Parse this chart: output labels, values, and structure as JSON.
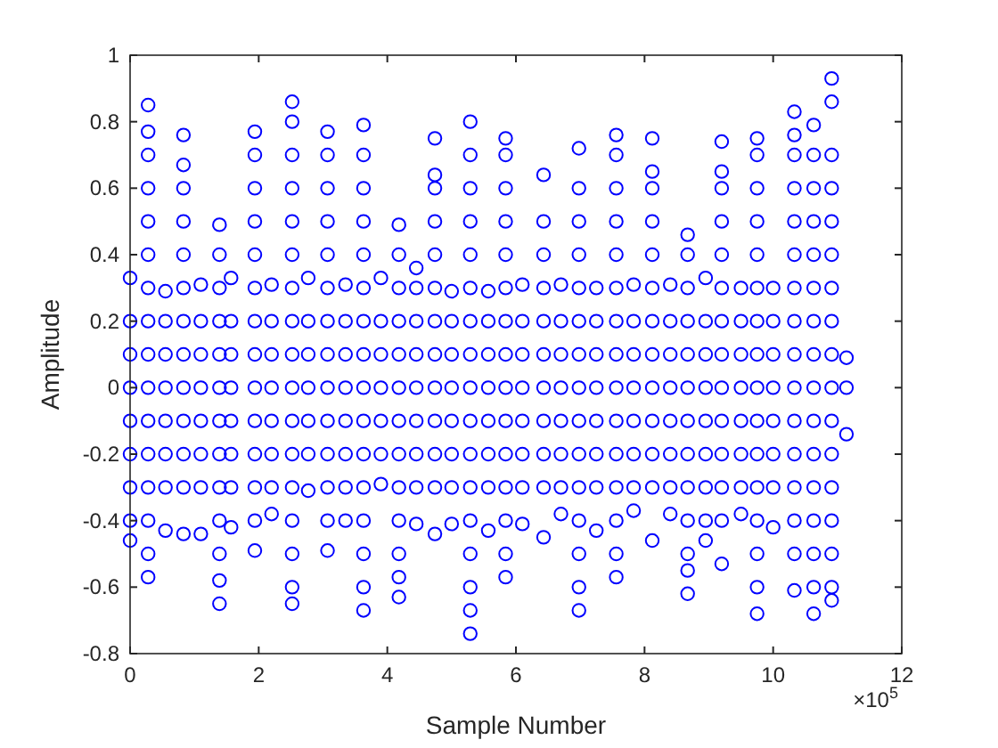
{
  "chart_data": {
    "type": "scatter",
    "xlabel": "Sample Number",
    "ylabel": "Amplitude",
    "marker": "circle",
    "xlim": [
      0,
      12
    ],
    "ylim": [
      -0.8,
      1
    ],
    "xticks": [
      0,
      2,
      4,
      6,
      8,
      10,
      12
    ],
    "yticks": [
      -0.8,
      -0.6,
      -0.4,
      -0.2,
      0,
      0.2,
      0.4,
      0.6,
      0.8,
      1
    ],
    "annotations": [
      "×10$^{5}$"
    ],
    "series": [
      {
        "color": "#0000ff",
        "x": [
          0,
          0,
          0,
          0,
          0,
          0,
          0,
          0,
          0
        ],
        "values": [
          0.33,
          0.2,
          0.1,
          0,
          -0.1,
          -0.2,
          -0.3,
          -0.4,
          -0.46
        ]
      },
      {
        "color": "#0000ff",
        "x": [
          0.28,
          0.28,
          0.28,
          0.28,
          0.28,
          0.28,
          0.28,
          0.28,
          0.28,
          0.28,
          0.28,
          0.28,
          0.28,
          0.28,
          0.28,
          0.28
        ],
        "values": [
          0.85,
          0.77,
          0.7,
          0.6,
          0.5,
          0.4,
          0.3,
          0.2,
          0.1,
          0,
          -0.1,
          -0.2,
          -0.3,
          -0.4,
          -0.5,
          -0.57
        ]
      },
      {
        "color": "#0000ff",
        "x": [
          0.55,
          0.55,
          0.55,
          0.55,
          0.55,
          0.55,
          0.55,
          0.55
        ],
        "values": [
          0.29,
          0.2,
          0.1,
          0,
          -0.1,
          -0.2,
          -0.3,
          -0.43
        ]
      },
      {
        "color": "#0000ff",
        "x": [
          0.83,
          0.83,
          0.83,
          0.83,
          0.83,
          0.83,
          0.83,
          0.83,
          0.83,
          0.83,
          0.83,
          0.83,
          0.83
        ],
        "values": [
          0.76,
          0.67,
          0.6,
          0.5,
          0.4,
          0.3,
          0.2,
          0.1,
          0,
          -0.1,
          -0.2,
          -0.3,
          -0.44
        ]
      },
      {
        "color": "#0000ff",
        "x": [
          1.1,
          1.1,
          1.1,
          1.1,
          1.1,
          1.1,
          1.1,
          1.1
        ],
        "values": [
          0.31,
          0.2,
          0.1,
          0,
          -0.1,
          -0.2,
          -0.3,
          -0.44
        ]
      },
      {
        "color": "#0000ff",
        "x": [
          1.39,
          1.39,
          1.39,
          1.39,
          1.39,
          1.39,
          1.39,
          1.39,
          1.39,
          1.39,
          1.39,
          1.39,
          1.39
        ],
        "values": [
          0.49,
          0.4,
          0.3,
          0.2,
          0.1,
          0,
          -0.1,
          -0.2,
          -0.3,
          -0.4,
          -0.5,
          -0.58,
          -0.65
        ]
      },
      {
        "color": "#0000ff",
        "x": [
          1.57,
          1.57,
          1.57,
          1.57,
          1.57,
          1.57,
          1.57,
          1.57
        ],
        "values": [
          0.33,
          0.2,
          0.1,
          0,
          -0.1,
          -0.2,
          -0.3,
          -0.42
        ]
      },
      {
        "color": "#0000ff",
        "x": [
          1.94,
          1.94,
          1.94,
          1.94,
          1.94,
          1.94,
          1.94,
          1.94,
          1.94,
          1.94,
          1.94,
          1.94,
          1.94,
          1.94
        ],
        "values": [
          0.77,
          0.7,
          0.6,
          0.5,
          0.4,
          0.3,
          0.2,
          0.1,
          0,
          -0.1,
          -0.2,
          -0.3,
          -0.4,
          -0.49
        ]
      },
      {
        "color": "#0000ff",
        "x": [
          2.2,
          2.2,
          2.2,
          2.2,
          2.2,
          2.2,
          2.2,
          2.2
        ],
        "values": [
          0.31,
          0.2,
          0.1,
          0,
          -0.1,
          -0.2,
          -0.3,
          -0.38
        ]
      },
      {
        "color": "#0000ff",
        "x": [
          2.52,
          2.52,
          2.52,
          2.52,
          2.52,
          2.52,
          2.52,
          2.52,
          2.52,
          2.52,
          2.52,
          2.52,
          2.52,
          2.52,
          2.52,
          2.52,
          2.52
        ],
        "values": [
          0.86,
          0.8,
          0.7,
          0.6,
          0.5,
          0.4,
          0.3,
          0.2,
          0.1,
          0,
          -0.1,
          -0.2,
          -0.3,
          -0.4,
          -0.5,
          -0.6,
          -0.65
        ]
      },
      {
        "color": "#0000ff",
        "x": [
          2.77,
          2.77,
          2.77,
          2.77,
          2.77,
          2.77,
          2.77
        ],
        "values": [
          0.33,
          0.2,
          0.1,
          0,
          -0.1,
          -0.2,
          -0.31
        ]
      },
      {
        "color": "#0000ff",
        "x": [
          3.07,
          3.07,
          3.07,
          3.07,
          3.07,
          3.07,
          3.07,
          3.07,
          3.07,
          3.07,
          3.07,
          3.07,
          3.07,
          3.07
        ],
        "values": [
          0.77,
          0.7,
          0.6,
          0.5,
          0.4,
          0.3,
          0.2,
          0.1,
          0,
          -0.1,
          -0.2,
          -0.3,
          -0.4,
          -0.49
        ]
      },
      {
        "color": "#0000ff",
        "x": [
          3.35,
          3.35,
          3.35,
          3.35,
          3.35,
          3.35,
          3.35,
          3.35
        ],
        "values": [
          0.31,
          0.2,
          0.1,
          0,
          -0.1,
          -0.2,
          -0.3,
          -0.4
        ]
      },
      {
        "color": "#0000ff",
        "x": [
          3.63,
          3.63,
          3.63,
          3.63,
          3.63,
          3.63,
          3.63,
          3.63,
          3.63,
          3.63,
          3.63,
          3.63,
          3.63,
          3.63,
          3.63,
          3.63
        ],
        "values": [
          0.79,
          0.7,
          0.6,
          0.5,
          0.4,
          0.3,
          0.2,
          0.1,
          0,
          -0.1,
          -0.2,
          -0.3,
          -0.4,
          -0.5,
          -0.6,
          -0.67
        ]
      },
      {
        "color": "#0000ff",
        "x": [
          3.9,
          3.9,
          3.9,
          3.9,
          3.9,
          3.9,
          3.9
        ],
        "values": [
          0.33,
          0.2,
          0.1,
          0,
          -0.1,
          -0.2,
          -0.29
        ]
      },
      {
        "color": "#0000ff",
        "x": [
          4.18,
          4.18,
          4.18,
          4.18,
          4.18,
          4.18,
          4.18,
          4.18,
          4.18,
          4.18,
          4.18,
          4.18,
          4.18
        ],
        "values": [
          0.49,
          0.4,
          0.3,
          0.2,
          0.1,
          0,
          -0.1,
          -0.2,
          -0.3,
          -0.4,
          -0.5,
          -0.57,
          -0.63
        ]
      },
      {
        "color": "#0000ff",
        "x": [
          4.45,
          4.45,
          4.45,
          4.45,
          4.45,
          4.45,
          4.45,
          4.45,
          4.45
        ],
        "values": [
          0.36,
          0.3,
          0.2,
          0.1,
          0,
          -0.1,
          -0.2,
          -0.3,
          -0.41
        ]
      },
      {
        "color": "#0000ff",
        "x": [
          4.74,
          4.74,
          4.74,
          4.74,
          4.74,
          4.74,
          4.74,
          4.74,
          4.74,
          4.74,
          4.74,
          4.74,
          4.74
        ],
        "values": [
          0.75,
          0.64,
          0.6,
          0.5,
          0.4,
          0.3,
          0.2,
          0.1,
          0,
          -0.1,
          -0.2,
          -0.3,
          -0.44
        ]
      },
      {
        "color": "#0000ff",
        "x": [
          5,
          5,
          5,
          5,
          5,
          5,
          5,
          5
        ],
        "values": [
          0.29,
          0.2,
          0.1,
          0,
          -0.1,
          -0.2,
          -0.3,
          -0.41
        ]
      },
      {
        "color": "#0000ff",
        "x": [
          5.29,
          5.29,
          5.29,
          5.29,
          5.29,
          5.29,
          5.29,
          5.29,
          5.29,
          5.29,
          5.29,
          5.29,
          5.29,
          5.29,
          5.29,
          5.29,
          5.29
        ],
        "values": [
          0.8,
          0.7,
          0.6,
          0.5,
          0.4,
          0.3,
          0.2,
          0.1,
          0,
          -0.1,
          -0.2,
          -0.3,
          -0.4,
          -0.5,
          -0.6,
          -0.67,
          -0.74
        ]
      },
      {
        "color": "#0000ff",
        "x": [
          5.57,
          5.57,
          5.57,
          5.57,
          5.57,
          5.57,
          5.57,
          5.57
        ],
        "values": [
          0.29,
          0.2,
          0.1,
          0,
          -0.1,
          -0.2,
          -0.3,
          -0.43
        ]
      },
      {
        "color": "#0000ff",
        "x": [
          5.84,
          5.84,
          5.84,
          5.84,
          5.84,
          5.84,
          5.84,
          5.84,
          5.84,
          5.84,
          5.84,
          5.84,
          5.84,
          5.84,
          5.84
        ],
        "values": [
          0.75,
          0.7,
          0.6,
          0.5,
          0.4,
          0.3,
          0.2,
          0.1,
          0,
          -0.1,
          -0.2,
          -0.3,
          -0.4,
          -0.5,
          -0.57
        ]
      },
      {
        "color": "#0000ff",
        "x": [
          6.1,
          6.1,
          6.1,
          6.1,
          6.1,
          6.1,
          6.1,
          6.1
        ],
        "values": [
          0.31,
          0.2,
          0.1,
          0,
          -0.1,
          -0.2,
          -0.3,
          -0.41
        ]
      },
      {
        "color": "#0000ff",
        "x": [
          6.43,
          6.43,
          6.43,
          6.43,
          6.43,
          6.43,
          6.43,
          6.43,
          6.43,
          6.43,
          6.43
        ],
        "values": [
          0.64,
          0.5,
          0.4,
          0.3,
          0.2,
          0.1,
          0,
          -0.1,
          -0.2,
          -0.3,
          -0.45
        ]
      },
      {
        "color": "#0000ff",
        "x": [
          6.7,
          6.7,
          6.7,
          6.7,
          6.7,
          6.7,
          6.7,
          6.7
        ],
        "values": [
          0.31,
          0.2,
          0.1,
          0,
          -0.1,
          -0.2,
          -0.3,
          -0.38
        ]
      },
      {
        "color": "#0000ff",
        "x": [
          6.98,
          6.98,
          6.98,
          6.98,
          6.98,
          6.98,
          6.98,
          6.98,
          6.98,
          6.98,
          6.98,
          6.98,
          6.98,
          6.98,
          6.98
        ],
        "values": [
          0.72,
          0.6,
          0.5,
          0.4,
          0.3,
          0.2,
          0.1,
          0,
          -0.1,
          -0.2,
          -0.3,
          -0.4,
          -0.5,
          -0.6,
          -0.67
        ]
      },
      {
        "color": "#0000ff",
        "x": [
          7.25,
          7.25,
          7.25,
          7.25,
          7.25,
          7.25,
          7.25,
          7.25
        ],
        "values": [
          0.3,
          0.2,
          0.1,
          0,
          -0.1,
          -0.2,
          -0.3,
          -0.43
        ]
      },
      {
        "color": "#0000ff",
        "x": [
          7.56,
          7.56,
          7.56,
          7.56,
          7.56,
          7.56,
          7.56,
          7.56,
          7.56,
          7.56,
          7.56,
          7.56,
          7.56,
          7.56,
          7.56
        ],
        "values": [
          0.76,
          0.7,
          0.6,
          0.5,
          0.4,
          0.3,
          0.2,
          0.1,
          0,
          -0.1,
          -0.2,
          -0.3,
          -0.4,
          -0.5,
          -0.57
        ]
      },
      {
        "color": "#0000ff",
        "x": [
          7.83,
          7.83,
          7.83,
          7.83,
          7.83,
          7.83,
          7.83,
          7.83
        ],
        "values": [
          0.31,
          0.2,
          0.1,
          0,
          -0.1,
          -0.2,
          -0.3,
          -0.37
        ]
      },
      {
        "color": "#0000ff",
        "x": [
          8.12,
          8.12,
          8.12,
          8.12,
          8.12,
          8.12,
          8.12,
          8.12,
          8.12,
          8.12,
          8.12,
          8.12,
          8.12
        ],
        "values": [
          0.75,
          0.65,
          0.6,
          0.5,
          0.4,
          0.3,
          0.2,
          0.1,
          0,
          -0.1,
          -0.2,
          -0.3,
          -0.46
        ]
      },
      {
        "color": "#0000ff",
        "x": [
          8.4,
          8.4,
          8.4,
          8.4,
          8.4,
          8.4,
          8.4,
          8.4
        ],
        "values": [
          0.31,
          0.2,
          0.1,
          0,
          -0.1,
          -0.2,
          -0.3,
          -0.38
        ]
      },
      {
        "color": "#0000ff",
        "x": [
          8.67,
          8.67,
          8.67,
          8.67,
          8.67,
          8.67,
          8.67,
          8.67,
          8.67,
          8.67,
          8.67,
          8.67,
          8.67
        ],
        "values": [
          0.46,
          0.4,
          0.3,
          0.2,
          0.1,
          0,
          -0.1,
          -0.2,
          -0.3,
          -0.4,
          -0.5,
          -0.55,
          -0.62
        ]
      },
      {
        "color": "#0000ff",
        "x": [
          8.95,
          8.95,
          8.95,
          8.95,
          8.95,
          8.95,
          8.95,
          8.95,
          8.95
        ],
        "values": [
          0.33,
          0.2,
          0.1,
          0,
          -0.1,
          -0.2,
          -0.3,
          -0.4,
          -0.46
        ]
      },
      {
        "color": "#0000ff",
        "x": [
          9.2,
          9.2,
          9.2,
          9.2,
          9.2,
          9.2,
          9.2,
          9.2,
          9.2,
          9.2,
          9.2,
          9.2,
          9.2,
          9.2
        ],
        "values": [
          0.74,
          0.65,
          0.6,
          0.5,
          0.4,
          0.3,
          0.2,
          0.1,
          0,
          -0.1,
          -0.2,
          -0.3,
          -0.4,
          -0.53
        ]
      },
      {
        "color": "#0000ff",
        "x": [
          9.5,
          9.5,
          9.5,
          9.5,
          9.5,
          9.5,
          9.5,
          9.5
        ],
        "values": [
          0.3,
          0.2,
          0.1,
          0,
          -0.1,
          -0.2,
          -0.3,
          -0.38
        ]
      },
      {
        "color": "#0000ff",
        "x": [
          9.75,
          9.75,
          9.75,
          9.75,
          9.75,
          9.75,
          9.75,
          9.75,
          9.75,
          9.75,
          9.75,
          9.75,
          9.75,
          9.75,
          9.75,
          9.75
        ],
        "values": [
          0.75,
          0.7,
          0.6,
          0.5,
          0.4,
          0.3,
          0.2,
          0.1,
          0,
          -0.1,
          -0.2,
          -0.3,
          -0.4,
          -0.5,
          -0.6,
          -0.68
        ]
      },
      {
        "color": "#0000ff",
        "x": [
          10,
          10,
          10,
          10,
          10,
          10,
          10,
          10
        ],
        "values": [
          0.3,
          0.2,
          0.1,
          0,
          -0.1,
          -0.2,
          -0.3,
          -0.42
        ]
      },
      {
        "color": "#0000ff",
        "x": [
          10.33,
          10.33,
          10.33,
          10.33,
          10.33,
          10.33,
          10.33,
          10.33,
          10.33,
          10.33,
          10.33,
          10.33,
          10.33,
          10.33,
          10.33,
          10.33
        ],
        "values": [
          0.83,
          0.76,
          0.7,
          0.6,
          0.5,
          0.4,
          0.3,
          0.2,
          0.1,
          0,
          -0.1,
          -0.2,
          -0.3,
          -0.4,
          -0.5,
          -0.61
        ]
      },
      {
        "color": "#0000ff",
        "x": [
          10.63,
          10.63,
          10.63,
          10.63,
          10.63,
          10.63,
          10.63,
          10.63,
          10.63,
          10.63,
          10.63,
          10.63,
          10.63,
          10.63,
          10.63,
          10.63
        ],
        "values": [
          0.79,
          0.7,
          0.6,
          0.5,
          0.4,
          0.3,
          0.2,
          0.1,
          0,
          -0.1,
          -0.2,
          -0.3,
          -0.4,
          -0.5,
          -0.6,
          -0.68
        ]
      },
      {
        "color": "#0000ff",
        "x": [
          10.91,
          10.91,
          10.91,
          10.91,
          10.91,
          10.91,
          10.91,
          10.91,
          10.91,
          10.91,
          10.91,
          10.91,
          10.91,
          10.91,
          10.91,
          10.91,
          10.91
        ],
        "values": [
          0.93,
          0.86,
          0.7,
          0.6,
          0.5,
          0.4,
          0.3,
          0.2,
          0.1,
          0,
          -0.1,
          -0.2,
          -0.3,
          -0.4,
          -0.5,
          -0.6,
          -0.64
        ]
      },
      {
        "color": "#0000ff",
        "x": [
          11.14,
          11.14,
          11.14
        ],
        "values": [
          0.09,
          0,
          -0.14
        ]
      }
    ]
  }
}
